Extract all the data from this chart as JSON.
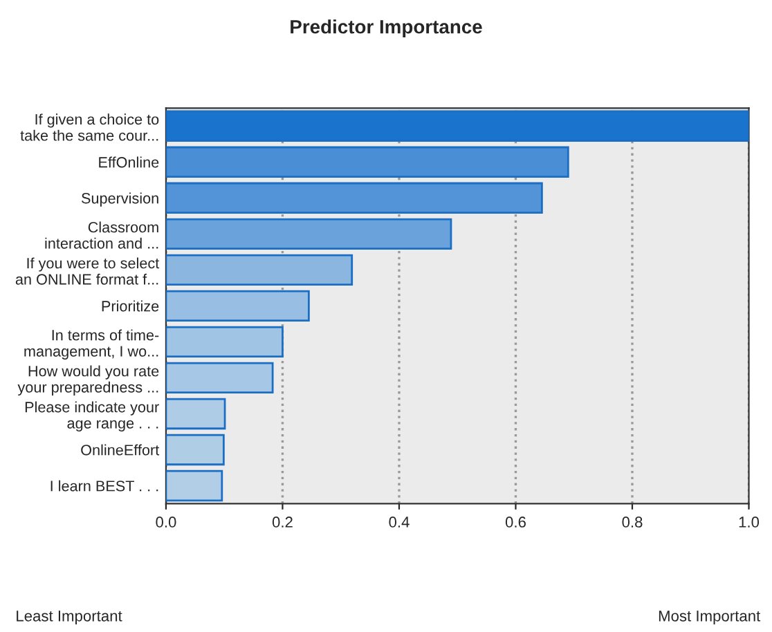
{
  "chart_data": {
    "type": "bar",
    "orientation": "horizontal",
    "title": "Predictor Importance",
    "categories": [
      "If given a choice to\ntake the same cour...",
      "EffOnline",
      "Supervision",
      "Classroom\ninteraction and ...",
      "If you were to select\nan ONLINE format f...",
      "Prioritize",
      "In terms of time-\nmanagement, I wo...",
      "How would you rate\nyour preparedness ...",
      "Please indicate your\nage range . . .",
      "OnlineEffort",
      "I learn BEST . . ."
    ],
    "values": [
      1.0,
      0.69,
      0.645,
      0.489,
      0.319,
      0.245,
      0.2,
      0.183,
      0.101,
      0.099,
      0.096
    ],
    "colors": [
      "#1a73cc",
      "#4a8fd6",
      "#5394d8",
      "#6aa3db",
      "#8ab6e0",
      "#98bfe3",
      "#a0c4e4",
      "#a6c7e5",
      "#afcce6",
      "#b0cde6",
      "#b1cee6"
    ],
    "xlim": [
      0.0,
      1.0
    ],
    "xticks": [
      {
        "value": 0.0,
        "label": "0.0"
      },
      0.2,
      0.4,
      0.6,
      0.8,
      {
        "value": 1.0,
        "label": "1.0"
      }
    ],
    "grid": "x",
    "legend": false,
    "annotations": [
      "Least Important",
      "Most Important"
    ]
  }
}
